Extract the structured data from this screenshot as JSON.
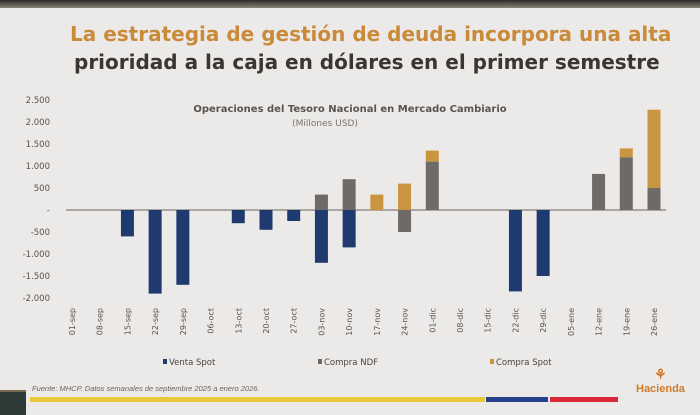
{
  "slide": {
    "title_line1": "La estrategia de gestión de deuda incorpora una alta",
    "title_line2": "prioridad a la caja en dólares en el primer semestre",
    "source": "Fuente: MHCP. Datos semanales de septiembre 2025 a enero 2026.",
    "logo_text": "Hacienda"
  },
  "chart_data": {
    "type": "bar",
    "stacked": true,
    "title": "Operaciones del Tesoro Nacional en Mercado Cambiario",
    "subtitle": "(Millones USD)",
    "ylim": [
      -2000,
      2500
    ],
    "yticks": [
      2500,
      2000,
      1500,
      1000,
      500,
      0,
      -500,
      -1000,
      -1500,
      -2000
    ],
    "ytick_labels": [
      "2.500",
      "2.000",
      "1.500",
      "1.000",
      "500",
      "-",
      "-500",
      "-1.000",
      "-1.500",
      "-2.000"
    ],
    "grid": false,
    "legend_position": "bottom",
    "categories": [
      "01-sep",
      "08-sep",
      "15-sep",
      "22-sep",
      "29-sep",
      "06-oct",
      "13-oct",
      "20-oct",
      "27-oct",
      "03-nov",
      "10-nov",
      "17-nov",
      "24-nov",
      "01-dic",
      "08-dic",
      "15-dic",
      "22-dic",
      "29-dic",
      "05-ene",
      "12-ene",
      "19-ene",
      "26-ene"
    ],
    "series": [
      {
        "name": "Venta Spot",
        "color": "#1e3a6e",
        "values": [
          0,
          0,
          -600,
          -1900,
          -1700,
          0,
          -300,
          -450,
          -250,
          -1200,
          -850,
          0,
          0,
          0,
          0,
          0,
          -1850,
          -1500,
          0,
          0,
          0,
          0
        ]
      },
      {
        "name": "Compra NDF",
        "color": "#6e6a67",
        "values": [
          0,
          0,
          0,
          0,
          0,
          0,
          0,
          0,
          0,
          350,
          700,
          0,
          -500,
          1100,
          0,
          0,
          0,
          0,
          0,
          820,
          1200,
          500
        ]
      },
      {
        "name": "Compra Spot",
        "color": "#c9953f",
        "values": [
          0,
          0,
          0,
          0,
          0,
          0,
          0,
          0,
          0,
          0,
          0,
          350,
          600,
          250,
          0,
          0,
          0,
          0,
          0,
          0,
          200,
          1780
        ]
      }
    ]
  },
  "footer_colors": {
    "yellow": "#e8c93a",
    "blue": "#26408f",
    "red": "#d8283a"
  }
}
